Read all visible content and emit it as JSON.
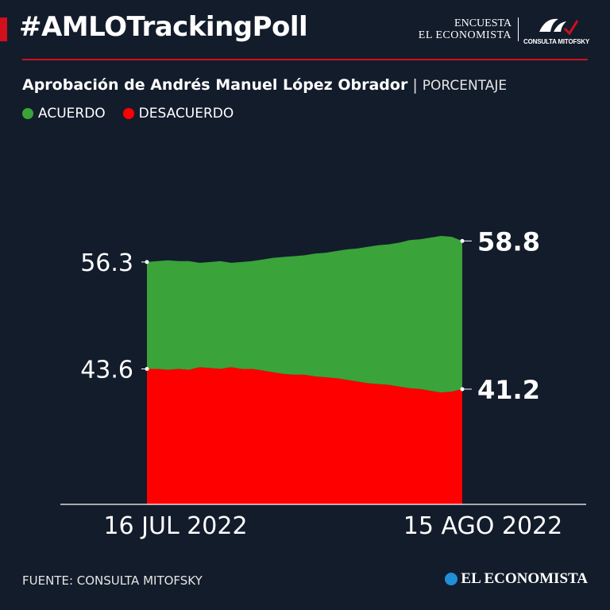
{
  "header": {
    "hashtag": "#AMLOTrackingPoll",
    "brand_line1": "ENCUESTA",
    "brand_line2": "EL ECONOMISTA",
    "brand_logo_caption": "CONSULTA MITOFSKY"
  },
  "subtitle": {
    "main": "Aprobación de Andrés Manuel López Obrador",
    "separator": "|",
    "unit": "PORCENTAJE"
  },
  "legend": [
    {
      "label": "ACUERDO",
      "color": "#3aa33a"
    },
    {
      "label": "DESACUERDO",
      "color": "#ff0000"
    }
  ],
  "colors": {
    "background": "#131c2b",
    "accent": "#d10f1d",
    "agree": "#3aa33a",
    "disagree": "#ff0000"
  },
  "chart_data": {
    "type": "area",
    "x_start_label": "16 JUL 2022",
    "x_end_label": "15 AGO 2022",
    "series": [
      {
        "name": "ACUERDO",
        "color": "#3aa33a",
        "values": [
          56.3,
          56.4,
          56.5,
          56.4,
          56.4,
          56.2,
          56.3,
          56.4,
          56.2,
          56.3,
          56.4,
          56.6,
          56.8,
          56.9,
          57.0,
          57.1,
          57.3,
          57.4,
          57.6,
          57.8,
          57.9,
          58.1,
          58.3,
          58.4,
          58.6,
          58.9,
          59.0,
          59.2,
          59.4,
          59.3,
          58.8
        ]
      },
      {
        "name": "DESACUERDO",
        "color": "#ff0000",
        "values": [
          43.6,
          43.6,
          43.5,
          43.6,
          43.5,
          43.8,
          43.7,
          43.6,
          43.8,
          43.6,
          43.6,
          43.4,
          43.2,
          43.0,
          42.9,
          42.9,
          42.7,
          42.6,
          42.5,
          42.3,
          42.1,
          41.9,
          41.8,
          41.7,
          41.5,
          41.3,
          41.2,
          41.0,
          40.8,
          40.9,
          41.2
        ]
      }
    ],
    "start_labels": [
      "56.3",
      "43.6"
    ],
    "end_labels": [
      "58.8",
      "41.2"
    ],
    "x_labels": [
      "16 JUL 2022",
      "15 AGO 2022"
    ],
    "grid": false
  },
  "footer": {
    "source": "FUENTE: CONSULTA MITOFSKY",
    "logo_text": "EL ECONOMISTA"
  }
}
